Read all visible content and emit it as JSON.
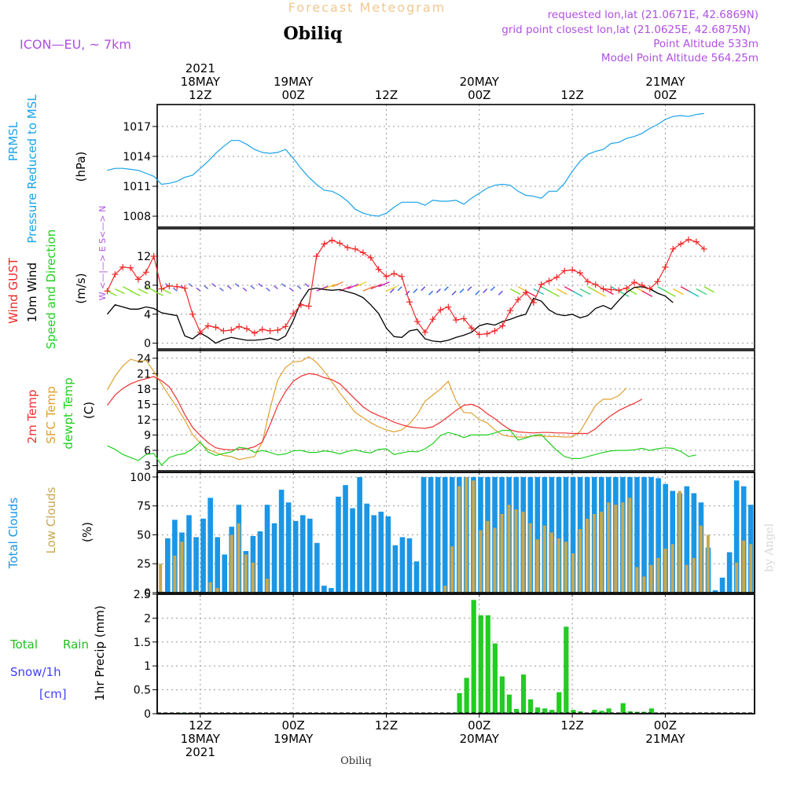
{
  "header": {
    "product_title": "Forecast Meteogram",
    "location": "Obiliq",
    "model": "ICON—EU,  ~ 7km",
    "requested": "requested lon,lat (21.0671E, 42.6869N)",
    "grid_point": "grid point closest lon,lat (21.0625E, 42.6875N)",
    "point_altitude": "Point Altitude 533m",
    "model_altitude": "Model Point Altitude 564.25m",
    "footer_location": "Obiliq",
    "watermark": "by Angel"
  },
  "time_axis": {
    "top_labels": [
      {
        "h": 12,
        "lines": [
          "2021",
          "18MAY",
          "12Z"
        ]
      },
      {
        "h": 24,
        "lines": [
          "19MAY",
          "00Z"
        ]
      },
      {
        "h": 36,
        "lines": [
          "12Z"
        ]
      },
      {
        "h": 48,
        "lines": [
          "20MAY",
          "00Z"
        ]
      },
      {
        "h": 60,
        "lines": [
          "12Z"
        ]
      },
      {
        "h": 72,
        "lines": [
          "21MAY",
          "00Z"
        ]
      }
    ],
    "bottom_labels": [
      {
        "h": 12,
        "lines": [
          "12Z",
          "18MAY",
          "2021"
        ]
      },
      {
        "h": 24,
        "lines": [
          "00Z",
          "19MAY"
        ]
      },
      {
        "h": 36,
        "lines": [
          "12Z"
        ]
      },
      {
        "h": 48,
        "lines": [
          "00Z",
          "20MAY"
        ]
      },
      {
        "h": 60,
        "lines": [
          "12Z"
        ]
      },
      {
        "h": 72,
        "lines": [
          "00Z",
          "21MAY"
        ]
      }
    ]
  },
  "colors": {
    "pressure": "#1aa3e8",
    "gust": "#f02828",
    "wind": "#000000",
    "temp": "#f03030",
    "sfc": "#e0a030",
    "dew": "#20d020",
    "cloud_total": "#1a96e6",
    "cloud_low": "#c8a850",
    "rain": "#22cc22",
    "snow": "#4040ff",
    "purple": "#b050e0",
    "title_orange": "#f0c890"
  },
  "chart_data": [
    {
      "type": "line",
      "title": "PRMSL Pressure Reduced to MSL",
      "ylabel": "(hPa)",
      "label_lines": [
        "PRMSL",
        "Pressure Reduced to MSL"
      ],
      "ylim": [
        1006.9,
        1019.2
      ],
      "yticks": [
        1008,
        1011,
        1014,
        1017
      ],
      "x_hours": "0..77 step 1",
      "series": [
        {
          "name": "Pressure",
          "values": [
            1012.6,
            1012.8,
            1012.8,
            1012.7,
            1012.6,
            1012.3,
            1012.0,
            1011.2,
            1011.3,
            1011.5,
            1011.9,
            1012.1,
            1012.8,
            1013.5,
            1014.3,
            1015.0,
            1015.6,
            1015.6,
            1015.2,
            1014.7,
            1014.4,
            1014.3,
            1014.4,
            1014.7,
            1013.8,
            1012.8,
            1011.9,
            1011.2,
            1010.6,
            1010.5,
            1010.1,
            1009.5,
            1008.7,
            1008.3,
            1008.1,
            1008.0,
            1008.3,
            1008.9,
            1009.4,
            1009.4,
            1009.4,
            1009.1,
            1009.6,
            1009.5,
            1009.5,
            1009.6,
            1009.2,
            1009.8,
            1010.3,
            1010.8,
            1011.1,
            1011.2,
            1011.1,
            1010.5,
            1010.1,
            1010.0,
            1009.8,
            1010.5,
            1010.5,
            1011.3,
            1012.5,
            1013.5,
            1014.2,
            1014.5,
            1014.7,
            1015.3,
            1015.4,
            1015.8,
            1016.0,
            1016.3,
            1016.8,
            1017.2,
            1017.7,
            1018.0,
            1018.1,
            1018.0,
            1018.2,
            1018.3
          ]
        }
      ]
    },
    {
      "type": "line",
      "title": "Wind GUST / 10m Wind Speed and Direction",
      "ylabel": "(m/s)",
      "label_lines": [
        "Wind GUST",
        "10m Wind",
        "Speed and Direction"
      ],
      "compass": "W <—|—> E   S<—> N",
      "ylim": [
        -0.8,
        15.8
      ],
      "yticks": [
        0,
        4,
        8,
        12
      ],
      "series": [
        {
          "name": "Gust",
          "values": [
            7.2,
            9.5,
            10.5,
            10.4,
            8.8,
            9.8,
            12.0,
            7.5,
            7.9,
            7.8,
            7.6,
            4.0,
            1.5,
            2.4,
            2.2,
            1.7,
            1.8,
            2.3,
            2.0,
            1.4,
            1.9,
            1.7,
            1.8,
            2.3,
            4.1,
            5.3,
            5.1,
            12.0,
            13.7,
            14.2,
            13.8,
            13.2,
            13.0,
            12.5,
            11.8,
            10.2,
            9.2,
            9.6,
            9.2,
            5.7,
            3.0,
            1.5,
            3.3,
            4.6,
            5.0,
            3.2,
            3.4,
            2.1,
            1.2,
            1.3,
            1.7,
            2.4,
            4.5,
            6.0,
            7.0,
            5.6,
            8.1,
            8.6,
            9.1,
            10.0,
            10.1,
            9.7,
            8.5,
            8.1,
            7.5,
            7.4,
            7.3,
            7.6,
            8.4,
            8.0,
            7.5,
            8.5,
            10.5,
            13.0,
            13.7,
            14.3,
            14.0,
            13.0
          ]
        },
        {
          "name": "Wind 10m",
          "values": [
            4.0,
            5.3,
            5.0,
            4.7,
            4.7,
            5.0,
            4.8,
            4.2,
            4.0,
            3.8,
            1.0,
            0.6,
            1.4,
            0.8,
            0.0,
            0.5,
            0.8,
            0.6,
            0.4,
            0.4,
            0.5,
            0.7,
            0.4,
            1.0,
            3.1,
            5.8,
            7.4,
            7.6,
            7.4,
            7.3,
            7.4,
            7.1,
            6.8,
            6.3,
            5.3,
            4.1,
            2.1,
            0.9,
            0.8,
            1.7,
            1.9,
            0.6,
            0.3,
            0.2,
            0.4,
            0.8,
            1.1,
            1.5,
            2.4,
            2.7,
            2.5,
            3.0,
            3.3,
            3.7,
            4.0,
            6.2,
            5.8,
            4.6,
            4.0,
            3.8,
            4.0,
            3.5,
            3.8,
            4.8,
            5.2,
            4.7,
            5.9,
            7.0,
            7.7,
            7.8,
            7.5,
            6.9,
            6.5,
            5.6
          ]
        }
      ]
    },
    {
      "type": "line",
      "title": "2m Temp / SFC Temp / dewpt Temp",
      "ylabel": "(C)",
      "label_lines": [
        "2m Temp",
        "SFC Temp",
        "dewpt Temp"
      ],
      "ylim": [
        2.0,
        25.5
      ],
      "yticks": [
        3,
        6,
        9,
        12,
        15,
        18,
        21,
        24
      ],
      "series": [
        {
          "name": "2m Temp",
          "values": [
            14.8,
            16.8,
            18.1,
            19.0,
            19.6,
            20.0,
            20.4,
            19.6,
            18.4,
            16.0,
            13.0,
            10.5,
            8.9,
            7.5,
            6.5,
            6.2,
            6.1,
            6.2,
            6.3,
            6.7,
            7.6,
            11.0,
            14.8,
            17.5,
            19.5,
            20.5,
            21.0,
            20.8,
            20.2,
            19.8,
            19.0,
            17.5,
            16.0,
            14.5,
            13.5,
            12.8,
            12.2,
            11.5,
            11.0,
            10.6,
            10.4,
            10.3,
            10.6,
            11.5,
            12.6,
            13.8,
            14.8,
            15.0,
            14.4,
            13.2,
            12.2,
            11.0,
            10.0,
            9.6,
            9.5,
            9.4,
            9.5,
            9.5,
            9.4,
            9.4,
            9.3,
            9.3,
            9.3,
            10.2,
            11.6,
            12.8,
            13.8,
            14.5,
            15.2,
            16.0
          ]
        },
        {
          "name": "SFC Temp",
          "values": [
            17.8,
            20.5,
            22.5,
            23.8,
            23.4,
            23.6,
            21.4,
            19.0,
            16.6,
            14.4,
            11.9,
            9.1,
            7.4,
            6.2,
            5.6,
            5.0,
            4.8,
            4.2,
            4.5,
            4.8,
            7.6,
            14.2,
            19.8,
            22.2,
            23.3,
            23.4,
            24.3,
            23.2,
            21.4,
            19.4,
            17.2,
            15.3,
            13.4,
            12.4,
            11.4,
            10.6,
            10.0,
            9.6,
            10.0,
            11.2,
            13.0,
            15.6,
            16.8,
            18.0,
            19.5,
            15.7,
            13.4,
            13.3,
            12.0,
            11.4,
            10.0,
            9.0,
            8.7,
            8.6,
            8.6,
            8.8,
            8.8,
            8.7,
            8.7,
            8.6,
            8.6,
            9.7,
            12.2,
            14.8,
            16.0,
            16.0,
            16.7,
            18.2
          ]
        },
        {
          "name": "Dewpt",
          "values": [
            6.9,
            6.2,
            5.2,
            4.6,
            4.0,
            5.2,
            5.4,
            3.1,
            4.6,
            5.1,
            5.4,
            6.3,
            7.6,
            5.7,
            5.0,
            5.4,
            5.7,
            6.6,
            6.4,
            5.6,
            6.0,
            5.6,
            5.1,
            5.3,
            5.9,
            6.0,
            5.6,
            5.6,
            5.9,
            5.7,
            5.3,
            5.8,
            6.1,
            5.7,
            5.5,
            6.2,
            6.3,
            5.2,
            5.5,
            5.8,
            5.7,
            6.3,
            7.3,
            8.9,
            9.5,
            9.1,
            8.5,
            9.0,
            9.0,
            9.0,
            9.4,
            9.9,
            9.9,
            8.0,
            8.4,
            8.9,
            9.1,
            7.5,
            6.0,
            4.8,
            4.4,
            4.4,
            4.8,
            5.2,
            5.6,
            5.9,
            6.0,
            6.0,
            6.1,
            6.4,
            6.0,
            6.3,
            6.5,
            6.4,
            5.8,
            4.8,
            5.1
          ]
        }
      ]
    },
    {
      "type": "bar",
      "title": "Total Clouds / Low Clouds",
      "ylabel": "(%)",
      "label_lines": [
        "Total Clouds",
        "Low Clouds"
      ],
      "ylim": [
        0,
        104
      ],
      "yticks": [
        0,
        25,
        50,
        75,
        100
      ],
      "series": [
        {
          "name": "Total Clouds",
          "values": [
            1,
            47,
            63,
            52,
            67,
            48,
            64,
            82,
            48,
            33,
            57,
            76,
            36,
            49,
            53,
            76,
            60,
            89,
            78,
            62,
            67,
            64,
            43,
            6,
            4,
            83,
            93,
            73,
            100,
            77,
            67,
            70,
            66,
            41,
            48,
            47,
            27,
            100,
            100,
            100,
            100,
            100,
            100,
            100,
            100,
            100,
            100,
            100,
            100,
            100,
            100,
            100,
            100,
            100,
            100,
            100,
            100,
            100,
            100,
            100,
            100,
            100,
            100,
            100,
            100,
            100,
            100,
            100,
            100,
            100,
            99,
            94,
            88,
            86,
            92,
            86,
            78,
            39,
            2,
            13,
            35,
            97,
            92,
            76
          ]
        },
        {
          "name": "Low Clouds",
          "values": [
            25,
            0,
            32,
            44,
            0,
            2,
            0,
            9,
            4,
            0,
            50,
            60,
            33,
            26,
            0,
            12,
            0,
            0,
            0,
            0,
            0,
            0,
            0,
            0,
            0,
            0,
            0,
            0,
            0,
            0,
            0,
            0,
            0,
            0,
            0,
            0,
            0,
            0,
            0,
            0,
            6,
            40,
            92,
            100,
            97,
            54,
            62,
            56,
            68,
            76,
            72,
            70,
            60,
            46,
            58,
            52,
            47,
            44,
            34,
            55,
            64,
            68,
            70,
            78,
            76,
            78,
            82,
            22,
            14,
            24,
            30,
            38,
            42,
            88,
            24,
            30,
            58,
            50,
            0,
            0,
            0,
            26,
            45,
            42
          ]
        }
      ]
    },
    {
      "type": "bar",
      "title": "Total Rain / Snow 1hr Precip",
      "ylabel": "1hr Precip (mm)",
      "label_lines": [
        "Total",
        "Rain",
        "Snow/1h",
        "[cm]"
      ],
      "ylim": [
        0,
        2.5
      ],
      "yticks": [
        "0",
        "0.5",
        "1",
        "1.5",
        "2",
        "2.5"
      ],
      "series": [
        {
          "name": "Rain",
          "values": [
            0,
            0,
            0,
            0.02,
            0,
            0.02,
            0,
            0,
            0,
            0,
            0,
            0,
            0,
            0,
            0,
            0,
            0,
            0,
            0,
            0,
            0,
            0,
            0,
            0,
            0,
            0,
            0,
            0,
            0,
            0,
            0,
            0,
            0,
            0,
            0,
            0,
            0,
            0,
            0,
            0,
            0,
            0,
            0.43,
            0.75,
            2.38,
            2.06,
            2.06,
            1.47,
            0.78,
            0.4,
            0.1,
            0.82,
            0.3,
            0.13,
            0.11,
            0.08,
            0.45,
            1.82,
            0.08,
            0.05,
            0,
            0.08,
            0.06,
            0.11,
            0,
            0.22,
            0.05,
            0.04,
            0.04,
            0.11,
            0,
            0,
            0,
            0,
            0,
            0,
            0,
            0,
            0,
            0,
            0,
            0,
            0,
            0
          ]
        }
      ]
    }
  ]
}
